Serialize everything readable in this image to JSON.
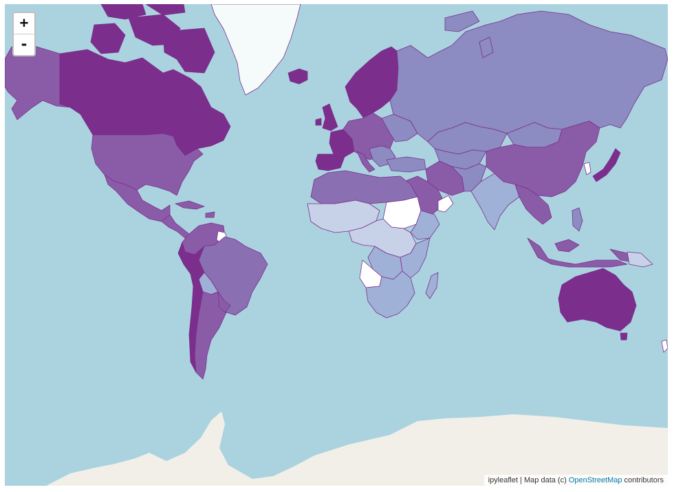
{
  "map": {
    "library": "ipyleaflet",
    "basemap": "OpenStreetMap",
    "colors": {
      "ocean": "#aad3df",
      "ice": "#f2efe9",
      "border": "#7b2e8c",
      "choropleth_scale": [
        "#ffffff",
        "#e3e8f4",
        "#c7d1e8",
        "#9fb1d7",
        "#8c8bc2",
        "#8a5ca8",
        "#7b2e8c"
      ]
    },
    "legend": null
  },
  "zoom": {
    "in_label": "+",
    "out_label": "-"
  },
  "attribution": {
    "prefix": "ipyleaflet | Map data (c) ",
    "link": "OpenStreetMap",
    "suffix": " contributors"
  }
}
